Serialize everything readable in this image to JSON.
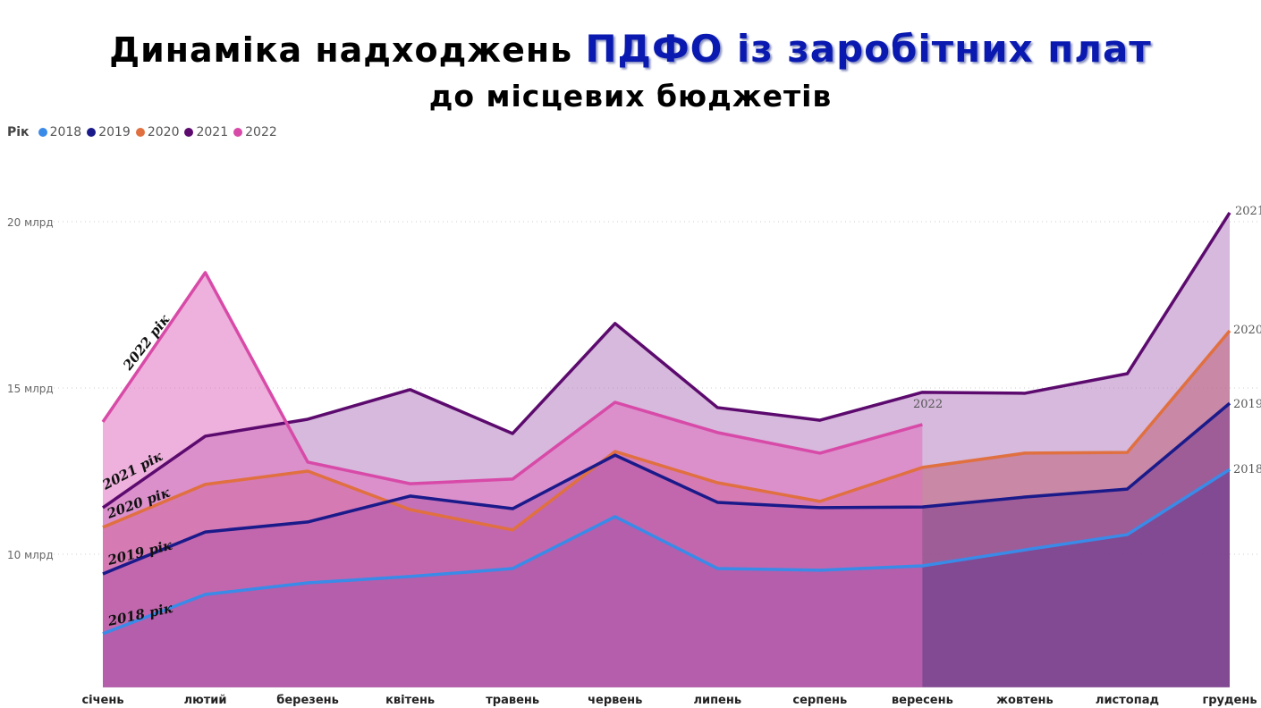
{
  "title": {
    "part1": "Динаміка надходжень ",
    "highlight": "ПДФО із заробітних плат",
    "line2": "до місцевих бюджетів"
  },
  "chart_data": {
    "type": "area",
    "legend_title": "Рік",
    "legend_position": "top-left",
    "categories": [
      "січень",
      "лютий",
      "березень",
      "квітень",
      "травень",
      "червень",
      "липень",
      "серпень",
      "вересень",
      "жовтень",
      "листопад",
      "грудень"
    ],
    "y_ticks": [
      {
        "value": 20,
        "label": "20 млрд"
      },
      {
        "value": 15,
        "label": "15 млрд"
      },
      {
        "value": 10,
        "label": "10 млрд"
      }
    ],
    "ylim": [
      6,
      21
    ],
    "grid": true,
    "series": [
      {
        "name": "2021",
        "color": "#5c0a6e",
        "fill": "#b57fbf",
        "values": [
          11.4,
          13.55,
          14.06,
          14.95,
          13.63,
          16.94,
          14.41,
          14.03,
          14.87,
          14.84,
          15.43,
          20.27
        ]
      },
      {
        "name": "2020",
        "color": "#e07040",
        "fill": "#c0607a",
        "values": [
          10.81,
          12.1,
          12.5,
          11.34,
          10.73,
          13.09,
          12.15,
          11.59,
          12.61,
          13.04,
          13.06,
          16.72
        ]
      },
      {
        "name": "2019",
        "color": "#1a1a8a",
        "fill": "#7a3a8a",
        "values": [
          9.41,
          10.67,
          10.97,
          11.75,
          11.37,
          12.98,
          11.56,
          11.4,
          11.42,
          11.72,
          11.96,
          14.54
        ]
      },
      {
        "name": "2018",
        "color": "#3a8ae8",
        "fill": "#6a3a90",
        "values": [
          7.61,
          8.79,
          9.14,
          9.33,
          9.57,
          11.13,
          9.57,
          9.52,
          9.65,
          10.13,
          10.59,
          12.55
        ]
      },
      {
        "name": "2022",
        "color": "#d84aa8",
        "fill": "#e070c0",
        "values": [
          13.98,
          18.47,
          12.77,
          12.12,
          12.26,
          14.57,
          13.66,
          13.04,
          13.9,
          null,
          null,
          null
        ]
      }
    ],
    "annotations": {
      "start_labels": [
        "2022 рік",
        "2021 рік",
        "2020 рік",
        "2019 рік",
        "2018 рік"
      ],
      "end_labels": [
        "2021",
        "2020",
        "2019",
        "2018",
        "2022"
      ]
    }
  }
}
